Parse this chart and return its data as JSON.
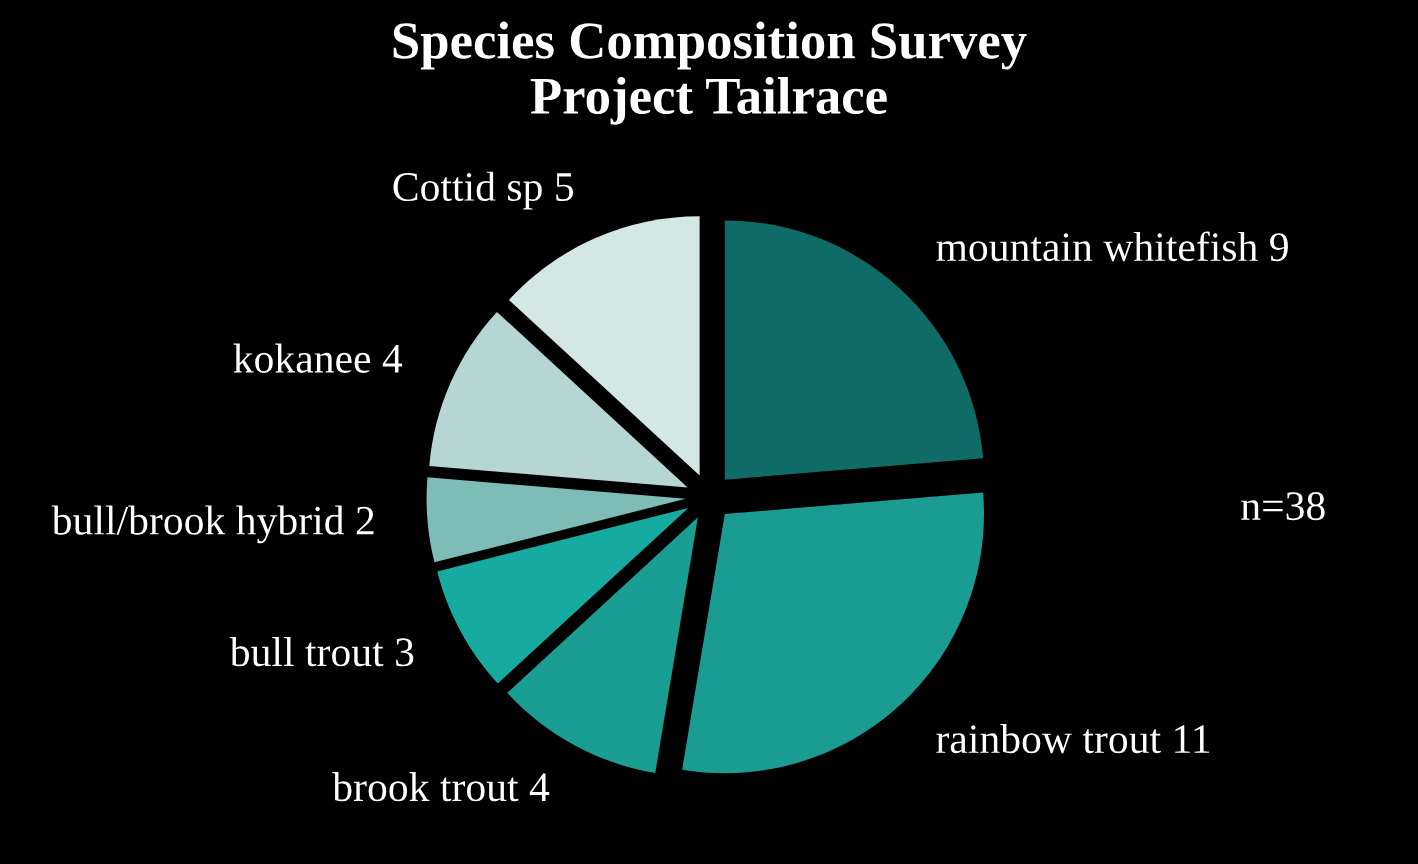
{
  "chart_data": {
    "type": "pie",
    "title": "Species Composition Survey\nProject Tailrace",
    "categories": [
      "mountain whitefish 9",
      "rainbow trout 11",
      "brook trout 4",
      "bull trout 3",
      "bull/brook hybrid 2",
      "kokanee 4",
      "Cottid sp 5"
    ],
    "values": [
      9,
      11,
      4,
      3,
      2,
      4,
      5
    ],
    "colors": [
      "#0e6b66",
      "#1b9c92",
      "#1a9e94",
      "#16aaa0",
      "#7dbcb7",
      "#b5d6d3",
      "#d3e7e5"
    ],
    "annotations": [
      "n=38"
    ]
  }
}
